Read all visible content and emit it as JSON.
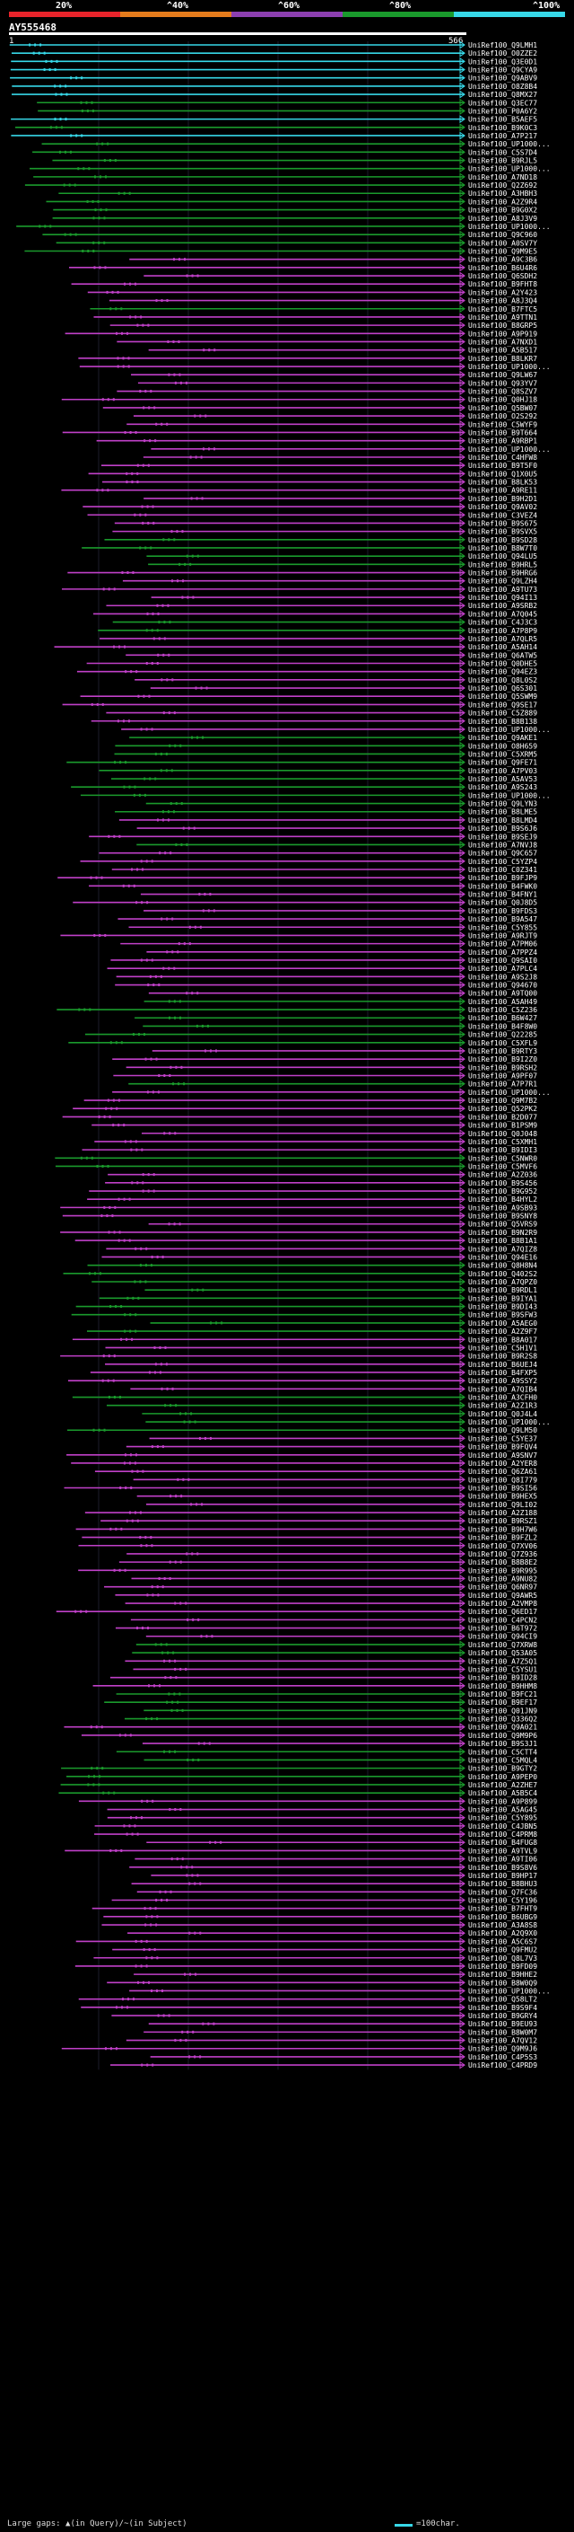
{
  "legend": {
    "labels": [
      "20%",
      "^40%",
      "^60%",
      "^80%",
      "^100%"
    ],
    "colors": [
      "#e8242b",
      "#e57c1c",
      "#8c3fb0",
      "#1a9a2c",
      "#37d8e8"
    ]
  },
  "query": {
    "id": "AY555468",
    "start": "1",
    "end": "566"
  },
  "hit_prefix": "UniRef100_",
  "hits": [
    {
      "id": "Q9LMH1",
      "c": 0
    },
    {
      "id": "O0ZZE2",
      "c": 0
    },
    {
      "id": "Q3E0D1",
      "c": 0
    },
    {
      "id": "Q9CYA9",
      "c": 0
    },
    {
      "id": "Q9ABV9",
      "c": 0
    },
    {
      "id": "O8Z8B4",
      "c": 0
    },
    {
      "id": "Q8MX27",
      "c": 0
    },
    {
      "id": "Q3EC77",
      "c": 1
    },
    {
      "id": "P0A6Y2",
      "c": 1
    },
    {
      "id": "B5AEF5",
      "c": 0
    },
    {
      "id": "B9K0C3",
      "c": 1
    },
    {
      "id": "A7P217",
      "c": 0
    },
    {
      "id": "UP1000...",
      "c": 1
    },
    {
      "id": "C5S7D4",
      "c": 1
    },
    {
      "id": "B9RJL5",
      "c": 1
    },
    {
      "id": "UP1000...",
      "c": 1
    },
    {
      "id": "A7ND18",
      "c": 1
    },
    {
      "id": "Q2Z692",
      "c": 1
    },
    {
      "id": "A3HBH3",
      "c": 1
    },
    {
      "id": "A2Z9R4",
      "c": 1
    },
    {
      "id": "B9G0X2",
      "c": 1
    },
    {
      "id": "A8J3V9",
      "c": 1
    },
    {
      "id": "UP1000...",
      "c": 1
    },
    {
      "id": "Q9C960",
      "c": 1
    },
    {
      "id": "A0SV7Y",
      "c": 1
    },
    {
      "id": "Q9M9E5",
      "c": 1
    },
    {
      "id": "A9C3B6",
      "c": 2
    },
    {
      "id": "B6U4R6",
      "c": 2
    },
    {
      "id": "Q6SDH2",
      "c": 2
    },
    {
      "id": "B9FHT8",
      "c": 2
    },
    {
      "id": "A2Y423",
      "c": 2
    },
    {
      "id": "A8J3Q4",
      "c": 2
    },
    {
      "id": "B7FTC5",
      "c": 1
    },
    {
      "id": "A9TTN1",
      "c": 2
    },
    {
      "id": "B8GRP5",
      "c": 2
    },
    {
      "id": "A9P919",
      "c": 2
    },
    {
      "id": "A7NXD1",
      "c": 2
    },
    {
      "id": "A5B517",
      "c": 2
    },
    {
      "id": "B8LKR7",
      "c": 2
    },
    {
      "id": "UP1000...",
      "c": 2
    },
    {
      "id": "Q9LW67",
      "c": 2
    },
    {
      "id": "Q93YV7",
      "c": 2
    },
    {
      "id": "Q8SZV7",
      "c": 2
    },
    {
      "id": "Q0HJ18",
      "c": 2
    },
    {
      "id": "Q5BW07",
      "c": 2
    },
    {
      "id": "O2S292",
      "c": 2
    },
    {
      "id": "C5WYF9",
      "c": 2
    },
    {
      "id": "B9T664",
      "c": 2
    },
    {
      "id": "A9RBP1",
      "c": 2
    },
    {
      "id": "UP1000...",
      "c": 2
    },
    {
      "id": "C4HFW8",
      "c": 2
    },
    {
      "id": "B9T5F0",
      "c": 2
    },
    {
      "id": "Q1X0U5",
      "c": 2
    },
    {
      "id": "B8LK53",
      "c": 2
    },
    {
      "id": "A9RE11",
      "c": 2
    },
    {
      "id": "B9H2D1",
      "c": 2
    },
    {
      "id": "Q9AV02",
      "c": 2
    },
    {
      "id": "C3VEZ4",
      "c": 2
    },
    {
      "id": "B9S675",
      "c": 2
    },
    {
      "id": "B9SVX5",
      "c": 2
    },
    {
      "id": "B9SD28",
      "c": 1
    },
    {
      "id": "B8W7T0",
      "c": 1
    },
    {
      "id": "Q94LU5",
      "c": 1
    },
    {
      "id": "B9HRL5",
      "c": 1
    },
    {
      "id": "B9HRG6",
      "c": 2
    },
    {
      "id": "Q9LZH4",
      "c": 2
    },
    {
      "id": "A9TU73",
      "c": 2
    },
    {
      "id": "Q94I13",
      "c": 2
    },
    {
      "id": "A9SRB2",
      "c": 2
    },
    {
      "id": "A7Q045",
      "c": 2
    },
    {
      "id": "C4J3C3",
      "c": 1
    },
    {
      "id": "A7P8P9",
      "c": 1
    },
    {
      "id": "A7QLR5",
      "c": 2
    },
    {
      "id": "A5AH14",
      "c": 2
    },
    {
      "id": "Q6ATW5",
      "c": 2
    },
    {
      "id": "Q0DHE5",
      "c": 2
    },
    {
      "id": "Q94EZ3",
      "c": 2
    },
    {
      "id": "Q8L0S2",
      "c": 2
    },
    {
      "id": "Q6S301",
      "c": 2
    },
    {
      "id": "Q5SWM9",
      "c": 2
    },
    {
      "id": "Q9SE17",
      "c": 2
    },
    {
      "id": "C5Z889",
      "c": 2
    },
    {
      "id": "B8B138",
      "c": 2
    },
    {
      "id": "UP1000...",
      "c": 2
    },
    {
      "id": "Q9AKE1",
      "c": 1
    },
    {
      "id": "O8H659",
      "c": 1
    },
    {
      "id": "C5XRM5",
      "c": 1
    },
    {
      "id": "Q9FE71",
      "c": 1
    },
    {
      "id": "A7PV03",
      "c": 1
    },
    {
      "id": "A5AV53",
      "c": 1
    },
    {
      "id": "A9S243",
      "c": 1
    },
    {
      "id": "UP1000...",
      "c": 1
    },
    {
      "id": "Q9LYN3",
      "c": 1
    },
    {
      "id": "B8LME5",
      "c": 1
    },
    {
      "id": "B8LMD4",
      "c": 2
    },
    {
      "id": "B9S6J6",
      "c": 2
    },
    {
      "id": "B9SEJ9",
      "c": 2
    },
    {
      "id": "A7NVJ8",
      "c": 1
    },
    {
      "id": "Q9C657",
      "c": 2
    },
    {
      "id": "C5YZP4",
      "c": 2
    },
    {
      "id": "C0Z341",
      "c": 2
    },
    {
      "id": "B9FJP9",
      "c": 2
    },
    {
      "id": "B4FWK0",
      "c": 2
    },
    {
      "id": "B4FNY1",
      "c": 2
    },
    {
      "id": "Q0J8D5",
      "c": 2
    },
    {
      "id": "B9FDS3",
      "c": 2
    },
    {
      "id": "B9A547",
      "c": 2
    },
    {
      "id": "C5Y855",
      "c": 2
    },
    {
      "id": "A9RJT9",
      "c": 2
    },
    {
      "id": "A7PM06",
      "c": 2
    },
    {
      "id": "A7PPZ4",
      "c": 2
    },
    {
      "id": "Q9SAI0",
      "c": 2
    },
    {
      "id": "A7PLC4",
      "c": 2
    },
    {
      "id": "A9S2J8",
      "c": 2
    },
    {
      "id": "Q94670",
      "c": 2
    },
    {
      "id": "A9TQ00",
      "c": 2
    },
    {
      "id": "A5AH49",
      "c": 1
    },
    {
      "id": "C5Z236",
      "c": 1
    },
    {
      "id": "B6W427",
      "c": 1
    },
    {
      "id": "B4F8W0",
      "c": 1
    },
    {
      "id": "Q22285",
      "c": 1
    },
    {
      "id": "C5XFL9",
      "c": 1
    },
    {
      "id": "B9RTY3",
      "c": 2
    },
    {
      "id": "B9I2Z0",
      "c": 2
    },
    {
      "id": "B9RSH2",
      "c": 2
    },
    {
      "id": "A9PF07",
      "c": 2
    },
    {
      "id": "A7P7R1",
      "c": 1
    },
    {
      "id": "UP1000...",
      "c": 2
    },
    {
      "id": "Q9M7B2",
      "c": 2
    },
    {
      "id": "Q52PK2",
      "c": 2
    },
    {
      "id": "B2D077",
      "c": 2
    },
    {
      "id": "B1PSM9",
      "c": 2
    },
    {
      "id": "Q0J048",
      "c": 2
    },
    {
      "id": "C5XMH1",
      "c": 2
    },
    {
      "id": "B9IDI3",
      "c": 2
    },
    {
      "id": "C5NWR0",
      "c": 1
    },
    {
      "id": "C5MVF6",
      "c": 1
    },
    {
      "id": "A2Z036",
      "c": 2
    },
    {
      "id": "B9S456",
      "c": 2
    },
    {
      "id": "B9G952",
      "c": 2
    },
    {
      "id": "B4HYL2",
      "c": 2
    },
    {
      "id": "A9SB93",
      "c": 2
    },
    {
      "id": "B9SNY8",
      "c": 2
    },
    {
      "id": "Q5VRS9",
      "c": 2
    },
    {
      "id": "B9N2R9",
      "c": 2
    },
    {
      "id": "B8B1A1",
      "c": 2
    },
    {
      "id": "A7QIZ8",
      "c": 2
    },
    {
      "id": "Q94E16",
      "c": 2
    },
    {
      "id": "Q8H8N4",
      "c": 1
    },
    {
      "id": "Q402S2",
      "c": 1
    },
    {
      "id": "A7QPZ0",
      "c": 1
    },
    {
      "id": "B9RDL1",
      "c": 1
    },
    {
      "id": "B9IYA1",
      "c": 1
    },
    {
      "id": "B9DI43",
      "c": 1
    },
    {
      "id": "B9SFW3",
      "c": 1
    },
    {
      "id": "A5AEG0",
      "c": 1
    },
    {
      "id": "A2Z9F7",
      "c": 1
    },
    {
      "id": "B8A017",
      "c": 2
    },
    {
      "id": "C5H1V1",
      "c": 2
    },
    {
      "id": "B9R2S8",
      "c": 2
    },
    {
      "id": "B6UEJ4",
      "c": 2
    },
    {
      "id": "B4FXP5",
      "c": 2
    },
    {
      "id": "A9SSY2",
      "c": 2
    },
    {
      "id": "A7QIB4",
      "c": 2
    },
    {
      "id": "A3CFH0",
      "c": 1
    },
    {
      "id": "A2Z1R3",
      "c": 1
    },
    {
      "id": "Q0J4L4",
      "c": 1
    },
    {
      "id": "UP1000...",
      "c": 1
    },
    {
      "id": "Q9LM50",
      "c": 1
    },
    {
      "id": "C5YE37",
      "c": 2
    },
    {
      "id": "B9FQV4",
      "c": 2
    },
    {
      "id": "A9SNV7",
      "c": 2
    },
    {
      "id": "A2YER8",
      "c": 2
    },
    {
      "id": "Q6ZA61",
      "c": 2
    },
    {
      "id": "Q8I779",
      "c": 2
    },
    {
      "id": "B9SI56",
      "c": 2
    },
    {
      "id": "B9HEX5",
      "c": 2
    },
    {
      "id": "Q9LI02",
      "c": 2
    },
    {
      "id": "A2Z188",
      "c": 2
    },
    {
      "id": "B9RSZ1",
      "c": 2
    },
    {
      "id": "B9H7W6",
      "c": 2
    },
    {
      "id": "B9FZL2",
      "c": 2
    },
    {
      "id": "Q7XV06",
      "c": 2
    },
    {
      "id": "Q7Z936",
      "c": 2
    },
    {
      "id": "B8B8E2",
      "c": 2
    },
    {
      "id": "B9R995",
      "c": 2
    },
    {
      "id": "A9NU82",
      "c": 2
    },
    {
      "id": "Q6NR97",
      "c": 2
    },
    {
      "id": "Q9AWR5",
      "c": 2
    },
    {
      "id": "A2VMP8",
      "c": 2
    },
    {
      "id": "Q6ED17",
      "c": 2
    },
    {
      "id": "C4PCN2",
      "c": 2
    },
    {
      "id": "B6T972",
      "c": 2
    },
    {
      "id": "Q94CI9",
      "c": 2
    },
    {
      "id": "Q7XRW8",
      "c": 1
    },
    {
      "id": "Q53A05",
      "c": 1
    },
    {
      "id": "A7Z5Q1",
      "c": 2
    },
    {
      "id": "C5YSU1",
      "c": 2
    },
    {
      "id": "B9ID28",
      "c": 2
    },
    {
      "id": "B9HHM8",
      "c": 2
    },
    {
      "id": "B9FC21",
      "c": 1
    },
    {
      "id": "B9EF17",
      "c": 1
    },
    {
      "id": "Q01JN9",
      "c": 1
    },
    {
      "id": "Q336Q2",
      "c": 1
    },
    {
      "id": "Q9A021",
      "c": 2
    },
    {
      "id": "Q9M9P6",
      "c": 2
    },
    {
      "id": "B9S3J1",
      "c": 2
    },
    {
      "id": "C5CTT4",
      "c": 1
    },
    {
      "id": "C5MQL4",
      "c": 1
    },
    {
      "id": "B9GTY2",
      "c": 1
    },
    {
      "id": "A9PEP0",
      "c": 1
    },
    {
      "id": "A2ZHE7",
      "c": 1
    },
    {
      "id": "A5B5C4",
      "c": 1
    },
    {
      "id": "A9P899",
      "c": 2
    },
    {
      "id": "A5AG45",
      "c": 2
    },
    {
      "id": "C5Y895",
      "c": 2
    },
    {
      "id": "C4JBN5",
      "c": 2
    },
    {
      "id": "C4PRM8",
      "c": 2
    },
    {
      "id": "B4FUG8",
      "c": 2
    },
    {
      "id": "A9TVL9",
      "c": 2
    },
    {
      "id": "A9TI06",
      "c": 2
    },
    {
      "id": "B9S8V6",
      "c": 2
    },
    {
      "id": "B9HP17",
      "c": 2
    },
    {
      "id": "B8BHU3",
      "c": 2
    },
    {
      "id": "Q7FC36",
      "c": 2
    },
    {
      "id": "C5Y196",
      "c": 2
    },
    {
      "id": "B7FHT9",
      "c": 2
    },
    {
      "id": "B6UBG9",
      "c": 2
    },
    {
      "id": "A3A8S8",
      "c": 2
    },
    {
      "id": "A2Q9X0",
      "c": 2
    },
    {
      "id": "A5C6S7",
      "c": 2
    },
    {
      "id": "Q9FMU2",
      "c": 2
    },
    {
      "id": "Q8L7V3",
      "c": 2
    },
    {
      "id": "B9FD09",
      "c": 2
    },
    {
      "id": "B9HHE2",
      "c": 2
    },
    {
      "id": "B8W0Q9",
      "c": 2
    },
    {
      "id": "UP1000...",
      "c": 2
    },
    {
      "id": "Q58LT2",
      "c": 2
    },
    {
      "id": "B9S9F4",
      "c": 2
    },
    {
      "id": "B9GRY4",
      "c": 2
    },
    {
      "id": "B9EU93",
      "c": 2
    },
    {
      "id": "B8W0M7",
      "c": 2
    },
    {
      "id": "A7QV12",
      "c": 2
    },
    {
      "id": "Q9M9J6",
      "c": 2
    },
    {
      "id": "C4P5S3",
      "c": 2
    },
    {
      "id": "C4PRD9",
      "c": 2
    }
  ],
  "footer": {
    "large_gaps": "Large gaps: ",
    "glyph_query": "▲",
    "gap_query": "(in Query)/",
    "glyph_subject": "~",
    "gap_subject": "(in Subject)",
    "scale": "=100char."
  }
}
